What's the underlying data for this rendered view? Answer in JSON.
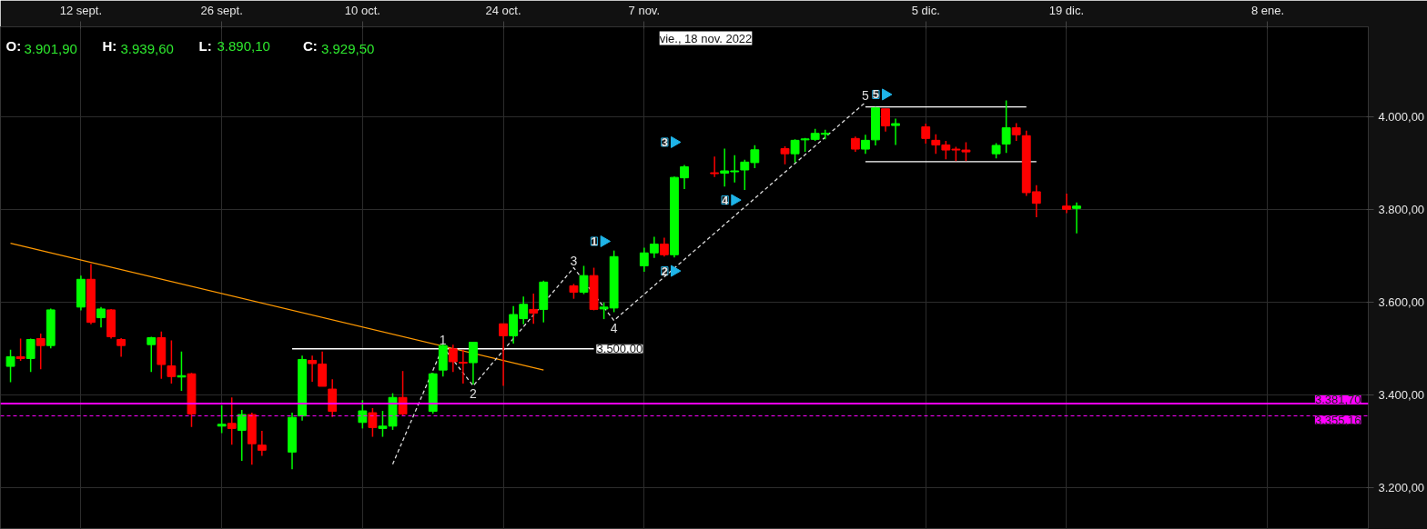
{
  "chart_data": {
    "type": "candlestick",
    "x": [
      "2022-09-05",
      "2022-09-06",
      "2022-09-07",
      "2022-09-08",
      "2022-09-09",
      "2022-09-12",
      "2022-09-13",
      "2022-09-14",
      "2022-09-15",
      "2022-09-16",
      "2022-09-19",
      "2022-09-20",
      "2022-09-21",
      "2022-09-22",
      "2022-09-23",
      "2022-09-26",
      "2022-09-27",
      "2022-09-28",
      "2022-09-29",
      "2022-09-30",
      "2022-10-03",
      "2022-10-04",
      "2022-10-05",
      "2022-10-06",
      "2022-10-07",
      "2022-10-10",
      "2022-10-11",
      "2022-10-12",
      "2022-10-13",
      "2022-10-14",
      "2022-10-17",
      "2022-10-18",
      "2022-10-19",
      "2022-10-20",
      "2022-10-21",
      "2022-10-24",
      "2022-10-25",
      "2022-10-26",
      "2022-10-27",
      "2022-10-28",
      "2022-10-31",
      "2022-11-01",
      "2022-11-02",
      "2022-11-03",
      "2022-11-04",
      "2022-11-07",
      "2022-11-08",
      "2022-11-09",
      "2022-11-10",
      "2022-11-11",
      "2022-11-14",
      "2022-11-15",
      "2022-11-16",
      "2022-11-17",
      "2022-11-18",
      "2022-11-21",
      "2022-11-22",
      "2022-11-23",
      "2022-11-24",
      "2022-11-25",
      "2022-11-28",
      "2022-11-29",
      "2022-11-30",
      "2022-12-01",
      "2022-12-02",
      "2022-12-05",
      "2022-12-06",
      "2022-12-07",
      "2022-12-08",
      "2022-12-09",
      "2022-12-12",
      "2022-12-13",
      "2022-12-14",
      "2022-12-15",
      "2022-12-16",
      "2022-12-19",
      "2022-12-20"
    ],
    "ohlc": [
      [
        3462,
        3498,
        3428,
        3483
      ],
      [
        3483,
        3522,
        3474,
        3479
      ],
      [
        3479,
        3522,
        3450,
        3520
      ],
      [
        3522,
        3533,
        3456,
        3507
      ],
      [
        3507,
        3587,
        3501,
        3584
      ],
      [
        3590,
        3658,
        3583,
        3650
      ],
      [
        3650,
        3683,
        3553,
        3557
      ],
      [
        3567,
        3590,
        3546,
        3586
      ],
      [
        3584,
        3586,
        3522,
        3526
      ],
      [
        3520,
        3523,
        3483,
        3507
      ],
      [
        3509,
        3526,
        3450,
        3524
      ],
      [
        3524,
        3537,
        3435,
        3466
      ],
      [
        3463,
        3518,
        3425,
        3440
      ],
      [
        3439,
        3494,
        3409,
        3442
      ],
      [
        3446,
        3448,
        3331,
        3359
      ],
      [
        3333,
        3378,
        3318,
        3337
      ],
      [
        3339,
        3395,
        3293,
        3328
      ],
      [
        3324,
        3368,
        3258,
        3358
      ],
      [
        3358,
        3362,
        3250,
        3295
      ],
      [
        3292,
        3323,
        3269,
        3281
      ],
      [
        3277,
        3362,
        3240,
        3352
      ],
      [
        3355,
        3485,
        3345,
        3477
      ],
      [
        3475,
        3485,
        3429,
        3468
      ],
      [
        3467,
        3494,
        3419,
        3419
      ],
      [
        3413,
        3434,
        3353,
        3365
      ],
      [
        3341,
        3389,
        3328,
        3366
      ],
      [
        3362,
        3372,
        3310,
        3330
      ],
      [
        3328,
        3366,
        3310,
        3333
      ],
      [
        3333,
        3404,
        3325,
        3395
      ],
      [
        3395,
        3452,
        3355,
        3359
      ],
      [
        3365,
        3448,
        3360,
        3446
      ],
      [
        3454,
        3511,
        3440,
        3507
      ],
      [
        3500,
        3509,
        3450,
        3472
      ],
      [
        3471,
        3498,
        3425,
        3469
      ],
      [
        3470,
        3514,
        3423,
        3514
      ],
      [
        3554,
        3554,
        3420,
        3528
      ],
      [
        3528,
        3592,
        3511,
        3574
      ],
      [
        3565,
        3613,
        3553,
        3596
      ],
      [
        3585,
        3619,
        3554,
        3577
      ],
      [
        3585,
        3647,
        3557,
        3644
      ],
      [
        3636,
        3640,
        3608,
        3622
      ],
      [
        3622,
        3679,
        3618,
        3658
      ],
      [
        3658,
        3675,
        3583,
        3585
      ],
      [
        3586,
        3600,
        3564,
        3590
      ],
      [
        3588,
        3712,
        3579,
        3699
      ],
      [
        3679,
        3718,
        3666,
        3707
      ],
      [
        3707,
        3742,
        3696,
        3726
      ],
      [
        3726,
        3740,
        3699,
        3703
      ],
      [
        3703,
        3872,
        3697,
        3870
      ],
      [
        3869,
        3897,
        3845,
        3893
      ],
      [
        3880,
        3915,
        3871,
        3878
      ],
      [
        3879,
        3932,
        3850,
        3884
      ],
      [
        3882,
        3918,
        3859,
        3884
      ],
      [
        3886,
        3908,
        3843,
        3903
      ],
      [
        3901.9,
        3939.6,
        3890.1,
        3929.5
      ],
      [
        3932,
        3937,
        3898,
        3921
      ],
      [
        3921,
        3952,
        3902,
        3950
      ],
      [
        3951,
        3955,
        3925,
        3953
      ],
      [
        3952,
        3975,
        3949,
        3965
      ],
      [
        3963,
        3973,
        3952,
        3965
      ],
      [
        3954,
        3958,
        3925,
        3931
      ],
      [
        3931,
        3962,
        3921,
        3950
      ],
      [
        3951,
        4022,
        3939,
        4020
      ],
      [
        4018,
        4018,
        3969,
        3981
      ],
      [
        3982,
        3997,
        3940,
        3986
      ],
      [
        3979,
        3986,
        3943,
        3954
      ],
      [
        3950,
        3963,
        3921,
        3940
      ],
      [
        3940,
        3949,
        3909,
        3929
      ],
      [
        3931,
        3936,
        3905,
        3929
      ],
      [
        3929,
        3946,
        3905,
        3925
      ],
      [
        3921,
        3944,
        3911,
        3939
      ],
      [
        3942,
        4036,
        3923,
        3977
      ],
      [
        3977,
        3987,
        3949,
        3962
      ],
      [
        3960,
        3971,
        3830,
        3837
      ],
      [
        3839,
        3853,
        3784,
        3814
      ],
      [
        3808,
        3835,
        3793,
        3801
      ],
      [
        3803,
        3816,
        3749,
        3808
      ]
    ],
    "series": [
      {
        "type": "line",
        "color": "#ff9900",
        "x": [
          "2022-09-05",
          "2022-10-28"
        ],
        "values": [
          3728,
          3454
        ]
      },
      {
        "type": "line",
        "color": "#ffffff",
        "x": [
          "2022-10-03",
          "2022-11-02"
        ],
        "values": [
          3500,
          3500
        ]
      },
      {
        "type": "line",
        "color": "#ffffff",
        "x": [
          "2022-11-29",
          "2022-12-15"
        ],
        "values": [
          4022,
          4022
        ]
      },
      {
        "type": "line",
        "color": "#ffffff",
        "x": [
          "2022-11-29",
          "2022-12-16"
        ],
        "values": [
          3904,
          3904
        ]
      },
      {
        "type": "line",
        "color": "#dddddd",
        "line_style": "dashed",
        "x": [
          "2022-10-13",
          "2022-10-18",
          "2022-10-21",
          "2022-10-31",
          "2022-11-04",
          "2022-11-29"
        ],
        "values": [
          3251,
          3504,
          3420,
          3675,
          3561,
          4032
        ]
      },
      {
        "type": "scatter",
        "marker": "triangle",
        "color": "#1fb4e8",
        "x": [
          "2022-11-03",
          "2022-11-10",
          "2022-11-10",
          "2022-11-16",
          "2022-12-01"
        ],
        "values": [
          3732,
          3668,
          3946,
          3821,
          4049
        ]
      }
    ],
    "xlim": [
      "2022-09-04",
      "2023-01-18"
    ],
    "xticks": [
      {
        "value": "2022-09-12",
        "label": "12 sept."
      },
      {
        "value": "2022-09-26",
        "label": "26 sept."
      },
      {
        "value": "2022-10-10",
        "label": "10 oct."
      },
      {
        "value": "2022-10-24",
        "label": "24 oct."
      },
      {
        "value": "2022-11-07",
        "label": "7 nov."
      },
      {
        "value": "2022-12-05",
        "label": "5 dic."
      },
      {
        "value": "2022-12-19",
        "label": "19 dic."
      },
      {
        "value": "2023-01-08",
        "label": "8 ene."
      }
    ],
    "ylim": [
      3110,
      4195
    ],
    "yticks": [
      {
        "value": 3200,
        "label": "3.200,00"
      },
      {
        "value": 3400,
        "label": "3.400,00"
      },
      {
        "value": 3600,
        "label": "3.600,00"
      },
      {
        "value": 3800,
        "label": "3.800,00"
      },
      {
        "value": 4000,
        "label": "4.000,00"
      }
    ],
    "ref_lines": [
      {
        "axis": "y",
        "value": 3381.7,
        "label": "3.381,70",
        "color": "#ff00ff",
        "line_style": "solid"
      },
      {
        "axis": "y",
        "value": 3355.16,
        "label": "3.355,16",
        "color": "#ff00ff",
        "line_style": "dashed"
      }
    ],
    "annotations": [
      "O:3.901,90",
      "H:3.939,60",
      "L: 3.890,10",
      "C:3.929,50",
      {
        "text": "3.500,00",
        "x": "2022-11-02",
        "y": 3500
      },
      "vie., 18 nov. 2022",
      {
        "text": "1",
        "x": "2022-10-18",
        "y": 3504
      },
      {
        "text": "2",
        "x": "2022-10-21",
        "y": 3420
      },
      {
        "text": "3",
        "x": "2022-10-31",
        "y": 3675
      },
      {
        "text": "4",
        "x": "2022-11-04",
        "y": 3561
      },
      {
        "text": "5",
        "x": "2022-11-29",
        "y": 4032
      },
      {
        "text": "1",
        "x": "2022-11-03",
        "y": 3732
      },
      {
        "text": "2",
        "x": "2022-11-10",
        "y": 3668
      },
      {
        "text": "3",
        "x": "2022-11-10",
        "y": 3946
      },
      {
        "text": "4",
        "x": "2022-11-16",
        "y": 3821
      },
      {
        "text": "5",
        "x": "2022-12-01",
        "y": 4049
      }
    ],
    "grid": true
  }
}
